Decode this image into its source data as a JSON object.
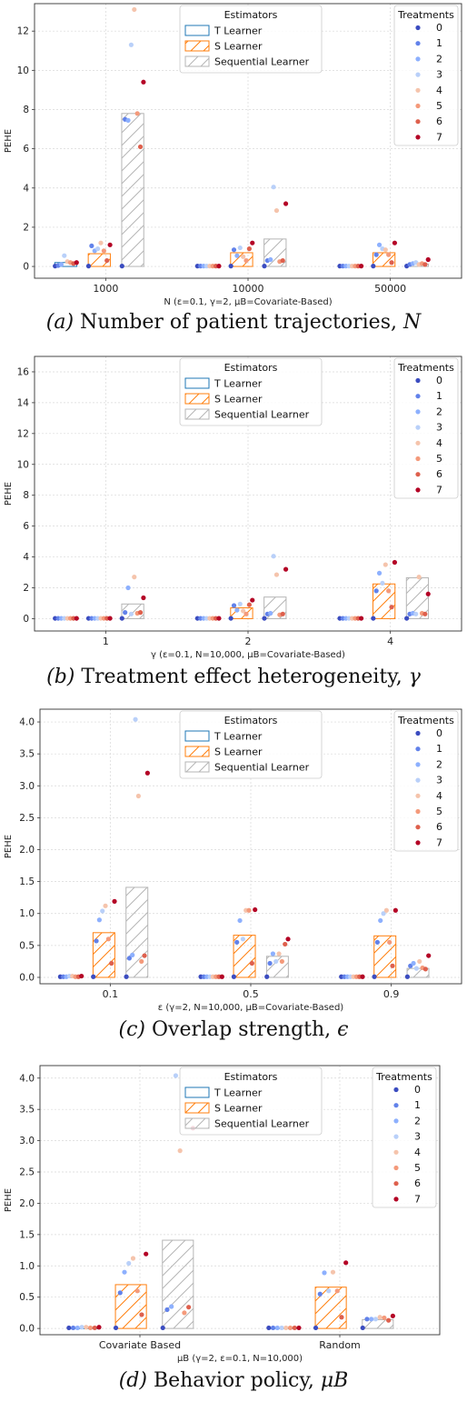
{
  "colors": {
    "t_learner": "#1f77b4",
    "s_learner": "#ff7f0e",
    "sequential_learner": "#b5b5b5",
    "treatments": [
      "#3b4cc0",
      "#6282ea",
      "#8db0fe",
      "#b9d0f9",
      "#f5c4ac",
      "#f49a7b",
      "#de604d",
      "#b40426"
    ]
  },
  "legend": {
    "estimators_title": "Estimators",
    "estimators": [
      "T Learner",
      "S Learner",
      "Sequential Learner"
    ],
    "treatments_title": "Treatments",
    "treatments": [
      "0",
      "1",
      "2",
      "3",
      "4",
      "5",
      "6",
      "7"
    ]
  },
  "captions": [
    {
      "prefix": "(a) ",
      "text": "Number of patient trajectories, ",
      "symbol": "N"
    },
    {
      "prefix": "(b) ",
      "text": "Treatment effect heterogeneity, ",
      "symbol": "γ"
    },
    {
      "prefix": "(c) ",
      "text": "Overlap strength, ",
      "symbol": "ϵ"
    },
    {
      "prefix": "(d) ",
      "text": "Behavior policy, ",
      "symbol": "μB"
    }
  ],
  "chart_data": [
    {
      "type": "bar",
      "ylabel": "PEHE",
      "xlabel": "N (ε=0.1, γ=2, μB=Covariate-Based)",
      "ylim": [
        -0.6,
        13.4
      ],
      "yticks": [
        0,
        2,
        4,
        6,
        8,
        10,
        12
      ],
      "categories": [
        "1000",
        "10000",
        "50000"
      ],
      "series": [
        {
          "name": "T Learner",
          "values": [
            0.2,
            0.02,
            0.02
          ]
        },
        {
          "name": "S Learner",
          "values": [
            0.65,
            0.7,
            0.7
          ]
        },
        {
          "name": "Sequential Learner",
          "values": [
            7.8,
            1.4,
            0.12
          ]
        }
      ],
      "treatment_points": [
        {
          "T Learner": [
            0.02,
            0.05,
            0.1,
            0.55,
            0.25,
            0.2,
            0.15,
            0.2
          ],
          "S Learner": [
            0.02,
            1.05,
            0.8,
            0.9,
            1.2,
            0.8,
            0.3,
            1.1
          ],
          "Sequential Learner": [
            0.02,
            7.5,
            7.45,
            11.3,
            13.1,
            7.8,
            6.1,
            9.4
          ]
        },
        {
          "T Learner": [
            0.02,
            0.02,
            0.02,
            0.02,
            0.02,
            0.02,
            0.02,
            0.02
          ],
          "S Learner": [
            0.02,
            0.85,
            0.55,
            0.95,
            0.5,
            0.3,
            0.9,
            1.2
          ],
          "Sequential Learner": [
            0.02,
            0.3,
            0.35,
            4.05,
            2.85,
            0.25,
            0.3,
            3.2
          ]
        },
        {
          "T Learner": [
            0.02,
            0.02,
            0.02,
            0.02,
            0.02,
            0.02,
            0.02,
            0.02
          ],
          "S Learner": [
            0.02,
            0.6,
            1.1,
            0.9,
            0.85,
            0.6,
            0.2,
            1.2
          ],
          "Sequential Learner": [
            0.02,
            0.1,
            0.15,
            0.2,
            0.1,
            0.15,
            0.1,
            0.35
          ]
        }
      ]
    },
    {
      "type": "bar",
      "ylabel": "PEHE",
      "xlabel": "γ (ε=0.1, N=10,000, μB=Covariate-Based)",
      "ylim": [
        -0.8,
        17.0
      ],
      "yticks": [
        0,
        2,
        4,
        6,
        8,
        10,
        12,
        14,
        16
      ],
      "categories": [
        "1",
        "2",
        "4"
      ],
      "series": [
        {
          "name": "T Learner",
          "values": [
            0.02,
            0.02,
            0.02
          ]
        },
        {
          "name": "S Learner",
          "values": [
            0.02,
            0.7,
            2.25
          ]
        },
        {
          "name": "Sequential Learner",
          "values": [
            0.95,
            1.4,
            2.65
          ]
        }
      ],
      "treatment_points": [
        {
          "T Learner": [
            0.02,
            0.02,
            0.02,
            0.02,
            0.02,
            0.02,
            0.02,
            0.02
          ],
          "S Learner": [
            0.02,
            0.02,
            0.02,
            0.02,
            0.02,
            0.02,
            0.02,
            0.02
          ],
          "Sequential Learner": [
            0.02,
            0.4,
            2.0,
            0.3,
            2.7,
            0.35,
            0.4,
            1.35
          ]
        },
        {
          "T Learner": [
            0.02,
            0.02,
            0.02,
            0.02,
            0.02,
            0.02,
            0.02,
            0.02
          ],
          "S Learner": [
            0.02,
            0.85,
            0.55,
            0.95,
            0.5,
            0.3,
            0.9,
            1.2
          ],
          "Sequential Learner": [
            0.02,
            0.3,
            0.35,
            4.05,
            2.85,
            0.25,
            0.3,
            3.2
          ]
        },
        {
          "T Learner": [
            0.02,
            0.02,
            0.02,
            0.02,
            0.02,
            0.02,
            0.02,
            0.02
          ],
          "S Learner": [
            0.02,
            1.8,
            2.95,
            2.3,
            3.5,
            1.8,
            0.75,
            3.65
          ],
          "Sequential Learner": [
            0.02,
            0.3,
            0.35,
            0.3,
            2.7,
            0.35,
            0.3,
            1.6
          ]
        }
      ]
    },
    {
      "type": "bar",
      "ylabel": "PEHE",
      "xlabel": "ε (γ=2, N=10,000, μB=Covariate-Based)",
      "ylim": [
        -0.1,
        4.2
      ],
      "yticks": [
        0.0,
        0.5,
        1.0,
        1.5,
        2.0,
        2.5,
        3.0,
        3.5,
        4.0
      ],
      "categories": [
        "0.1",
        "0.5",
        "0.9"
      ],
      "series": [
        {
          "name": "T Learner",
          "values": [
            0.01,
            0.01,
            0.01
          ]
        },
        {
          "name": "S Learner",
          "values": [
            0.7,
            0.66,
            0.65
          ]
        },
        {
          "name": "Sequential Learner",
          "values": [
            1.41,
            0.33,
            0.14
          ]
        }
      ],
      "treatment_points": [
        {
          "T Learner": [
            0.01,
            0.01,
            0.01,
            0.02,
            0.02,
            0.01,
            0.01,
            0.02
          ],
          "S Learner": [
            0.01,
            0.57,
            0.9,
            1.04,
            1.12,
            0.6,
            0.22,
            1.19
          ],
          "Sequential Learner": [
            0.01,
            0.3,
            0.35,
            4.04,
            2.84,
            0.25,
            0.34,
            3.2
          ]
        },
        {
          "T Learner": [
            0.01,
            0.01,
            0.01,
            0.01,
            0.01,
            0.01,
            0.01,
            0.01
          ],
          "S Learner": [
            0.01,
            0.55,
            0.89,
            0.6,
            1.05,
            1.05,
            0.22,
            1.06
          ],
          "Sequential Learner": [
            0.01,
            0.22,
            0.37,
            0.25,
            0.37,
            0.25,
            0.52,
            0.6
          ]
        },
        {
          "T Learner": [
            0.01,
            0.01,
            0.01,
            0.01,
            0.01,
            0.01,
            0.01,
            0.01
          ],
          "S Learner": [
            0.01,
            0.55,
            0.89,
            1.0,
            1.05,
            0.55,
            0.18,
            1.05
          ],
          "Sequential Learner": [
            0.01,
            0.18,
            0.22,
            0.14,
            0.25,
            0.15,
            0.13,
            0.34
          ]
        }
      ]
    },
    {
      "type": "bar",
      "ylabel": "PEHE",
      "xlabel": "μB (γ=2, ε=0.1, N=10,000)",
      "ylim": [
        -0.1,
        4.2
      ],
      "yticks": [
        0.0,
        0.5,
        1.0,
        1.5,
        2.0,
        2.5,
        3.0,
        3.5,
        4.0
      ],
      "categories": [
        "Covariate Based",
        "Random"
      ],
      "series": [
        {
          "name": "T Learner",
          "values": [
            0.01,
            0.01
          ]
        },
        {
          "name": "S Learner",
          "values": [
            0.7,
            0.66
          ]
        },
        {
          "name": "Sequential Learner",
          "values": [
            1.41,
            0.14
          ]
        }
      ],
      "treatment_points": [
        {
          "T Learner": [
            0.01,
            0.01,
            0.01,
            0.02,
            0.02,
            0.01,
            0.01,
            0.02
          ],
          "S Learner": [
            0.01,
            0.57,
            0.9,
            1.04,
            1.12,
            0.6,
            0.22,
            1.19
          ],
          "Sequential Learner": [
            0.01,
            0.3,
            0.35,
            4.04,
            2.84,
            0.25,
            0.34,
            3.2
          ]
        },
        {
          "T Learner": [
            0.01,
            0.01,
            0.01,
            0.01,
            0.01,
            0.01,
            0.01,
            0.01
          ],
          "S Learner": [
            0.01,
            0.55,
            0.89,
            0.6,
            0.9,
            0.6,
            0.18,
            1.05
          ],
          "Sequential Learner": [
            0.01,
            0.15,
            0.15,
            0.15,
            0.18,
            0.17,
            0.13,
            0.2
          ]
        }
      ]
    }
  ]
}
